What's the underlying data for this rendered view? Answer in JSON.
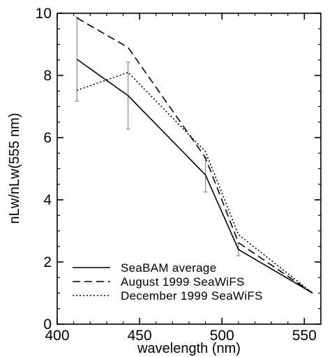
{
  "chart_data": {
    "type": "line",
    "title": "",
    "xlabel": "wavelength (nm)",
    "ylabel": "nLw/nLw(555 nm)",
    "xlim": [
      400,
      560
    ],
    "ylim": [
      0,
      10
    ],
    "x_ticks": [
      400,
      450,
      500,
      550
    ],
    "y_ticks": [
      0,
      2,
      4,
      6,
      8,
      10
    ],
    "x_tick_labels": [
      "400",
      "450",
      "500",
      "550"
    ],
    "y_tick_labels": [
      "0",
      "2",
      "4",
      "6",
      "8",
      "10"
    ],
    "grid": false,
    "legend_position": "bottom-left",
    "series": [
      {
        "name": "SeaBAM average",
        "style": "solid",
        "x": [
          412,
          443,
          490,
          510,
          555
        ],
        "y": [
          8.52,
          7.35,
          4.8,
          2.4,
          1.0
        ],
        "error": [
          1.35,
          1.08,
          0.55,
          0.2,
          0
        ]
      },
      {
        "name": "August 1999 SeaWiFS",
        "style": "dashed",
        "x": [
          412,
          443,
          490,
          510,
          555
        ],
        "y": [
          9.85,
          8.9,
          5.35,
          2.62,
          1.0
        ]
      },
      {
        "name": "December 1999 SeaWiFS",
        "style": "dotted",
        "x": [
          412,
          443,
          490,
          510,
          555
        ],
        "y": [
          7.52,
          8.1,
          5.55,
          2.88,
          1.0
        ]
      }
    ],
    "colors": {
      "lines": "#000000",
      "error_bars": "#8c8c8c"
    }
  }
}
